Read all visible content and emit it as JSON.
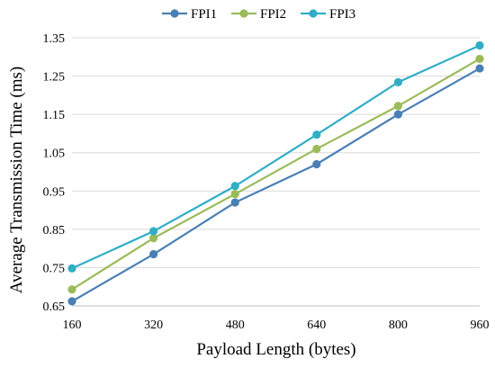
{
  "chart_data": {
    "type": "line",
    "title": "",
    "xlabel": "Payload Length (bytes)",
    "ylabel": "Average Transmission Time (ms)",
    "categories": [
      "160",
      "320",
      "480",
      "640",
      "800",
      "960"
    ],
    "ylim": [
      0.65,
      1.35
    ],
    "yticks": [
      "0.65",
      "0.75",
      "0.85",
      "0.95",
      "1.05",
      "1.15",
      "1.25",
      "1.35"
    ],
    "grid": true,
    "legend_position": "top-center",
    "series": [
      {
        "name": "FPI1",
        "color": "#4a7fb5",
        "values": [
          0.662,
          0.785,
          0.92,
          1.02,
          1.15,
          1.27
        ]
      },
      {
        "name": "FPI2",
        "color": "#9bbb59",
        "values": [
          0.693,
          0.827,
          0.942,
          1.06,
          1.172,
          1.295
        ]
      },
      {
        "name": "FPI3",
        "color": "#31aec6",
        "values": [
          0.748,
          0.845,
          0.963,
          1.097,
          1.234,
          1.33
        ]
      }
    ]
  }
}
